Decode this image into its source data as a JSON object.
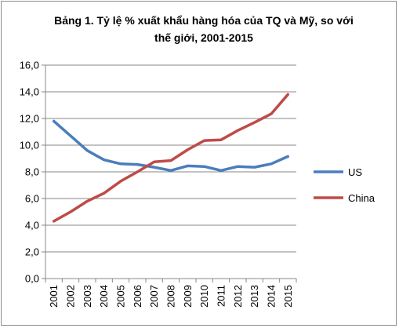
{
  "chart_data": {
    "type": "line",
    "title": "Bảng 1. Tỷ lệ % xuất khẩu hàng hóa của TQ và Mỹ, so với thế giới, 2001-2015",
    "x": [
      "2001",
      "2002",
      "2003",
      "2004",
      "2005",
      "2006",
      "2007",
      "2008",
      "2009",
      "2010",
      "2011",
      "2012",
      "2013",
      "2014",
      "2015"
    ],
    "ylim": [
      0,
      16
    ],
    "yticks": [
      "0,0",
      "2,0",
      "4,0",
      "6,0",
      "8,0",
      "10,0",
      "12,0",
      "14,0",
      "16,0"
    ],
    "grid": true,
    "legend_position": "right",
    "series": [
      {
        "name": "US",
        "color": "#4a7ebb",
        "values": [
          11.8,
          10.7,
          9.6,
          8.9,
          8.6,
          8.55,
          8.35,
          8.1,
          8.45,
          8.4,
          8.1,
          8.4,
          8.35,
          8.6,
          9.15
        ]
      },
      {
        "name": "China",
        "color": "#be4b48",
        "values": [
          4.3,
          5.0,
          5.8,
          6.4,
          7.3,
          8.0,
          8.75,
          8.85,
          9.65,
          10.35,
          10.4,
          11.1,
          11.7,
          12.35,
          13.8
        ]
      }
    ]
  }
}
